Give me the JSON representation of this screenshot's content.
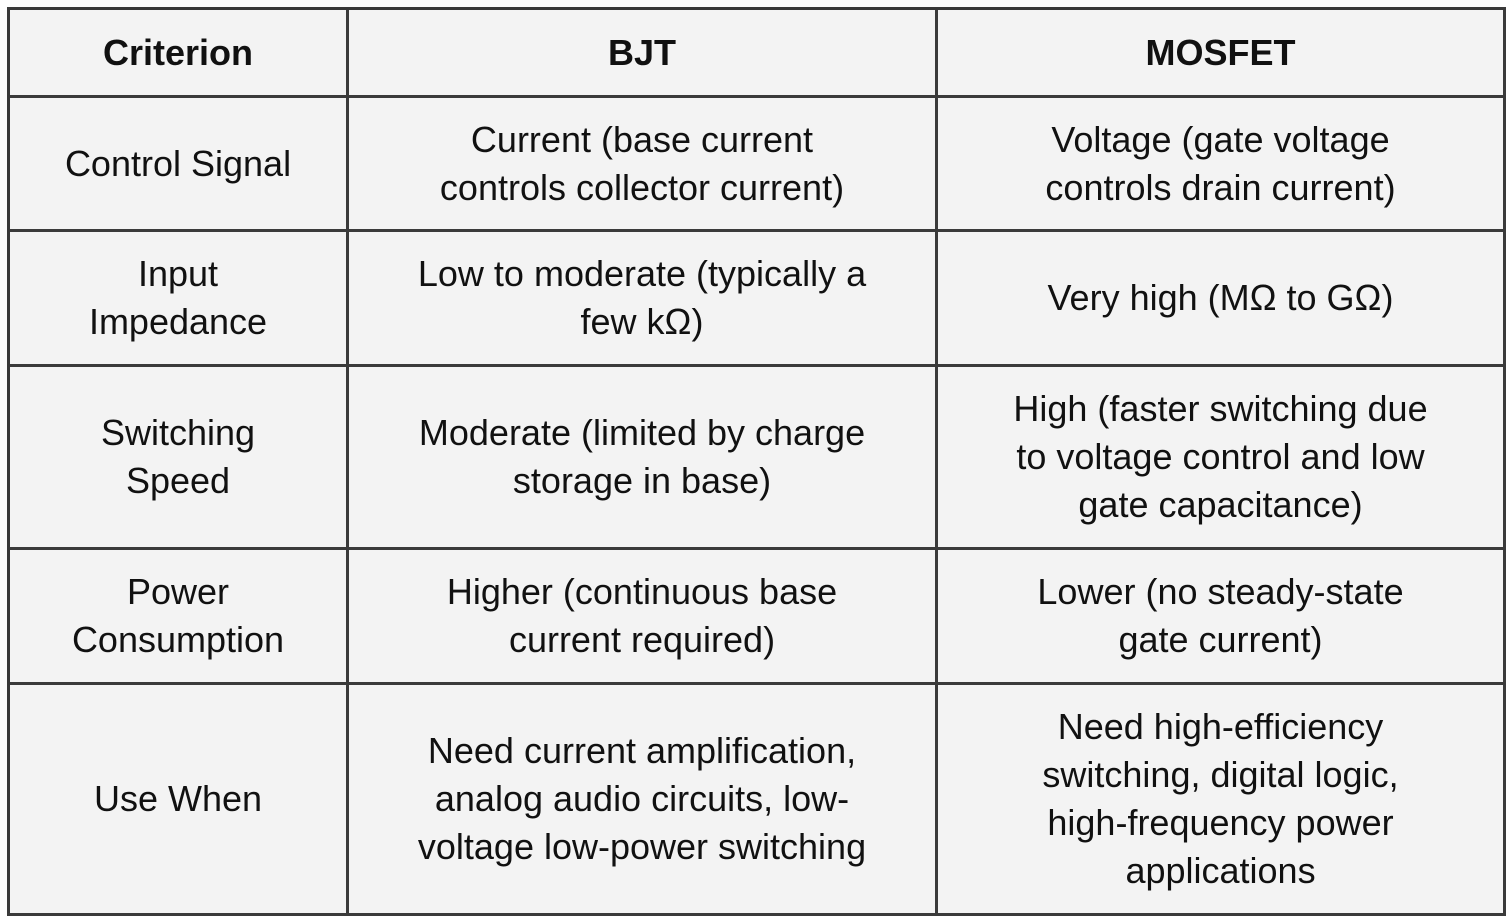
{
  "table": {
    "header": [
      "Criterion",
      "BJT",
      "MOSFET"
    ],
    "rows": [
      [
        [
          "Control Signal"
        ],
        [
          "Current (base current",
          "controls collector current)"
        ],
        [
          "Voltage (gate voltage",
          "controls drain current)"
        ]
      ],
      [
        [
          "Input",
          "Impedance"
        ],
        [
          "Low to moderate (typically a",
          "few kΩ)"
        ],
        [
          "Very high (MΩ to GΩ)"
        ]
      ],
      [
        [
          "Switching",
          "Speed"
        ],
        [
          "Moderate (limited by charge",
          "storage in base)"
        ],
        [
          "High (faster switching due",
          "to voltage control and low",
          "gate capacitance)"
        ]
      ],
      [
        [
          "Power",
          "Consumption"
        ],
        [
          "Higher (continuous base",
          "current required)"
        ],
        [
          "Lower (no steady-state",
          "gate current)"
        ]
      ],
      [
        [
          "Use When"
        ],
        [
          "Need current amplification,",
          "analog audio circuits, low-",
          "voltage low-power switching"
        ],
        [
          "Need high-efficiency",
          "switching, digital logic,",
          "high-frequency power",
          "applications"
        ]
      ]
    ]
  }
}
